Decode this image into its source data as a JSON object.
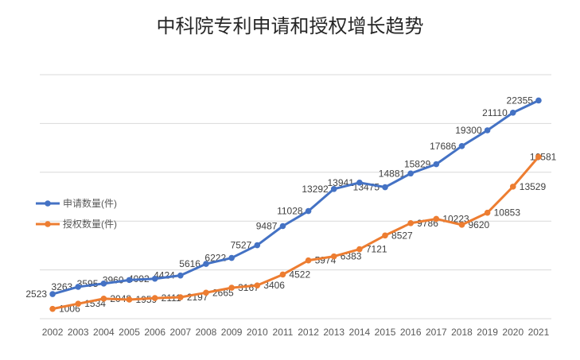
{
  "chart_data": {
    "type": "line",
    "title": "中科院专利申请和授权增长趋势",
    "categories": [
      "2002",
      "2003",
      "2004",
      "2005",
      "2006",
      "2007",
      "2008",
      "2009",
      "2010",
      "2011",
      "2012",
      "2013",
      "2014",
      "2015",
      "2016",
      "2017",
      "2018",
      "2019",
      "2020",
      "2021"
    ],
    "series": [
      {
        "name": "申请数量(件)",
        "color": "#4472C4",
        "label_side": "left",
        "values": [
          2523,
          3263,
          3595,
          3960,
          4092,
          4424,
          5616,
          6222,
          7527,
          9487,
          11028,
          13292,
          13941,
          13475,
          14881,
          15829,
          17686,
          19300,
          21110,
          22355
        ]
      },
      {
        "name": "授权数量(件)",
        "color": "#ED7D31",
        "label_side": "right",
        "values": [
          1006,
          1534,
          2048,
          1959,
          2111,
          2197,
          2665,
          3167,
          3406,
          4522,
          5974,
          6383,
          7121,
          8527,
          9786,
          10223,
          9620,
          10853,
          13529,
          16581
        ]
      }
    ],
    "ylim": [
      0,
      25000
    ],
    "gridline_step": 5000,
    "grid": true,
    "legend_position": "middle-left",
    "colors": {
      "gridline": "#D9D9D9",
      "axis_text": "#595959",
      "label_text": "#404040",
      "title_text": "#262626",
      "background": "#FFFFFF"
    }
  }
}
